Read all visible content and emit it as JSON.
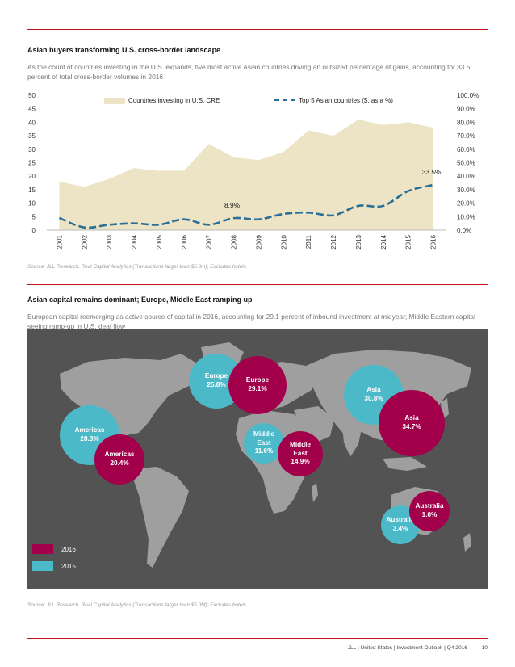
{
  "section1": {
    "title": "Asian buyers transforming U.S. cross-border landscape",
    "description": "As the count of countries investing in the U.S. expands, five most active Asian countries driving an outsized percentage of gains, accounting for 33.5 percent of total cross-border volumes in 2016",
    "source": "Source: JLL Research, Real Capital Analytics (Transactions larger than $5.0m); Excludes hotels"
  },
  "chart_data": {
    "type": "area",
    "categories": [
      "2001",
      "2002",
      "2003",
      "2004",
      "2005",
      "2006",
      "2007",
      "2008",
      "2009",
      "2010",
      "2011",
      "2012",
      "2013",
      "2014",
      "2015",
      "2016"
    ],
    "series": [
      {
        "name": "Countries investing in U.S. CRE",
        "type": "area",
        "axis": "left",
        "values": [
          18,
          16,
          19,
          23,
          22,
          22,
          32,
          27,
          26,
          29,
          37,
          35,
          41,
          39,
          40,
          38
        ]
      },
      {
        "name": "Top 5 Asian countries ($, as a %)",
        "type": "line",
        "style": "dashed",
        "axis": "right",
        "values": [
          9.0,
          2.0,
          4.0,
          5.0,
          4.0,
          8.0,
          4.0,
          8.9,
          8.0,
          12.0,
          13.0,
          11.0,
          18.0,
          18.0,
          29.0,
          33.5
        ]
      }
    ],
    "left_ticks": [
      "0",
      "5",
      "10",
      "15",
      "20",
      "25",
      "30",
      "35",
      "40",
      "45",
      "50"
    ],
    "right_ticks": [
      "0.0%",
      "10.0%",
      "20.0%",
      "30.0%",
      "40.0%",
      "50.0%",
      "60.0%",
      "70.0%",
      "80.0%",
      "90.0%",
      "100.0%"
    ],
    "ylim_left": [
      0,
      50
    ],
    "ylim_right": [
      0,
      100
    ],
    "annotations": [
      {
        "x": "2008",
        "series": 1,
        "label": "8.9%"
      },
      {
        "x": "2016",
        "series": 1,
        "label": "33.5%"
      }
    ],
    "legend_position": "top",
    "colors": {
      "area": "#ede4c6",
      "line": "#2a6f97"
    }
  },
  "section2": {
    "title": "Asian capital remains dominant; Europe, Middle East ramping up",
    "description": "European capital reemerging as active source of capital in 2016, accounting for 29.1 percent of inbound investment at midyear; Middle Eastern capital seeing ramp-up in U.S. deal flow",
    "source": "Source: JLL Research, Real Capital Analytics (Transactions larger than $5.0M); Excludes hotels"
  },
  "map": {
    "colors": {
      "map_bg": "#535353",
      "land": "#9f9f9f",
      "2015": "#4cb9c9",
      "2016": "#a3004b"
    },
    "legend": [
      {
        "label": "2016",
        "color": "#a3004b"
      },
      {
        "label": "2015",
        "color": "#4cb9c9"
      }
    ],
    "bubbles": [
      {
        "region": "Americas",
        "value": "28.3%",
        "year": "2015"
      },
      {
        "region": "Americas",
        "value": "20.4%",
        "year": "2016"
      },
      {
        "region": "Europe",
        "value": "25.8%",
        "year": "2015"
      },
      {
        "region": "Europe",
        "value": "29.1%",
        "year": "2016"
      },
      {
        "region": "Middle East",
        "value": "11.6%",
        "year": "2015"
      },
      {
        "region": "Middle East",
        "value": "14.9%",
        "year": "2016"
      },
      {
        "region": "Asia",
        "value": "30.8%",
        "year": "2015"
      },
      {
        "region": "Asia",
        "value": "34.7%",
        "year": "2016"
      },
      {
        "region": "Australia",
        "value": "3.4%",
        "year": "2015"
      },
      {
        "region": "Australia",
        "value": "1.0%",
        "year": "2016"
      }
    ]
  },
  "footer": {
    "text": "JLL | United States | Investment Outlook | Q4 2016",
    "page": "10"
  }
}
